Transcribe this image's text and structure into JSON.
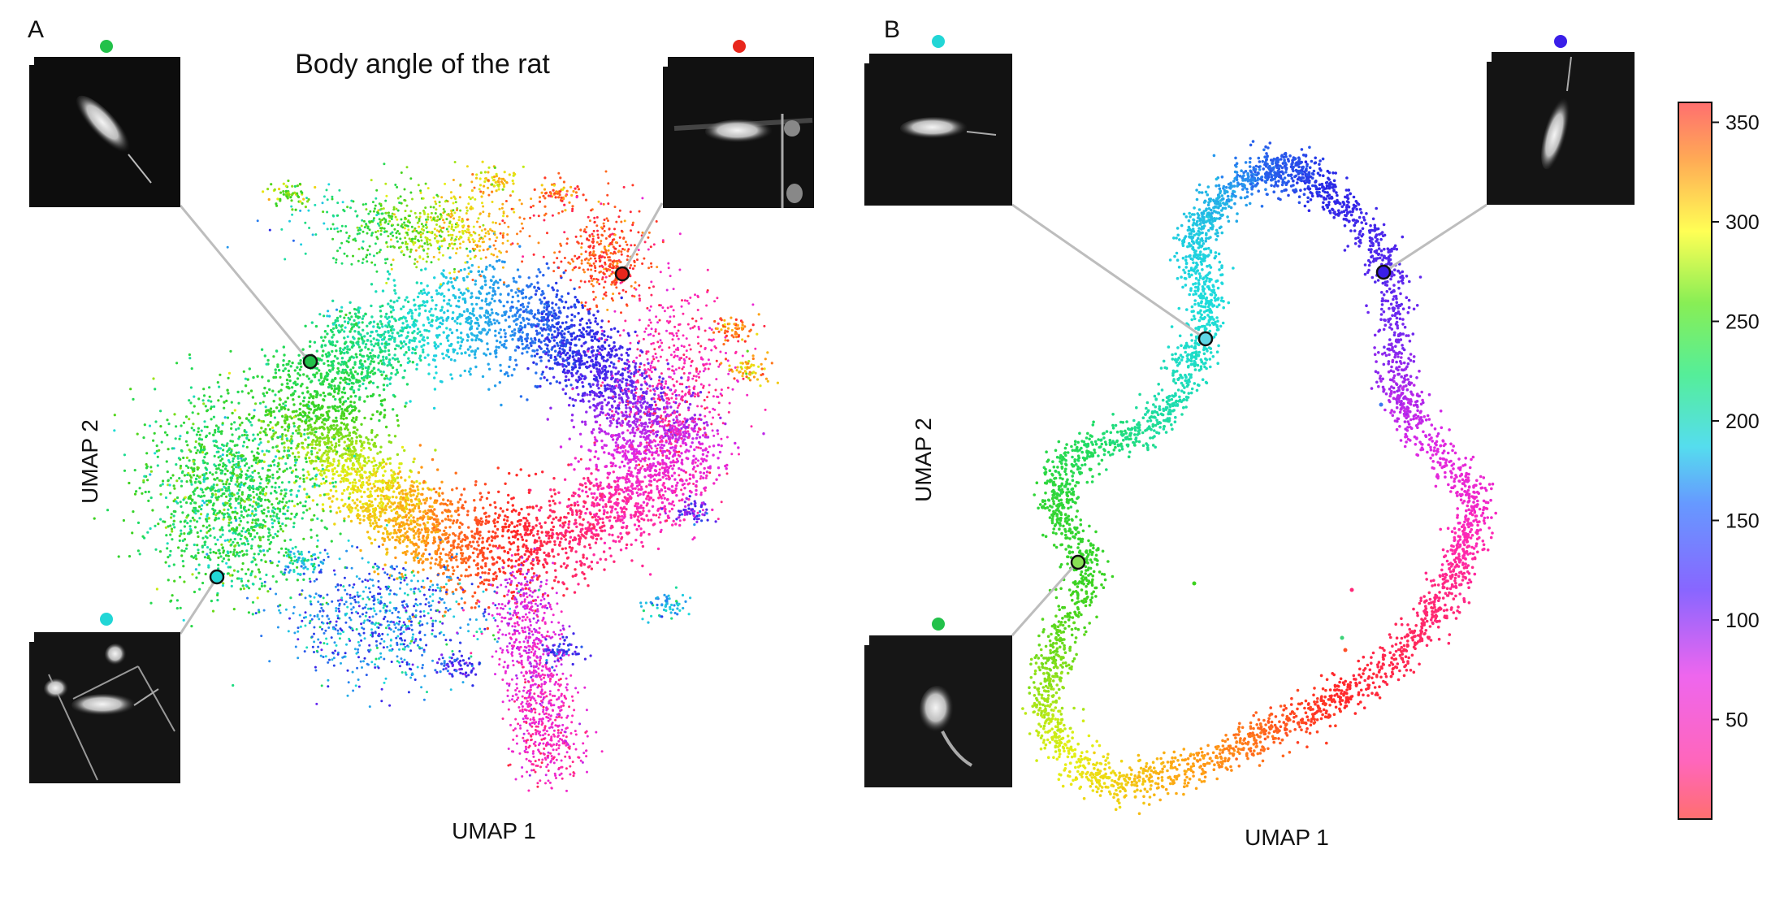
{
  "chart_data": [
    {
      "panel": "A",
      "type": "scatter",
      "title": "Body angle of the rat",
      "xlabel": "UMAP 1",
      "ylabel": "UMAP 2",
      "color_variable": "body angle (degrees)",
      "grid": false,
      "structure": "fragmented cloud with central hole; angle varies around the hole plus many small detached clusters",
      "highlighted_points": [
        {
          "dot_color": "#22c14a",
          "angle": 240
        },
        {
          "dot_color": "#e8261c",
          "angle": 10
        },
        {
          "dot_color": "#22d6d6",
          "angle": 180
        }
      ]
    },
    {
      "panel": "B",
      "type": "scatter",
      "title": "",
      "xlabel": "UMAP 1",
      "ylabel": "UMAP 2",
      "color_variable": "body angle (degrees)",
      "grid": false,
      "structure": "single closed ring, angle increases smoothly around the loop",
      "highlighted_points": [
        {
          "dot_color": "#22d6d6",
          "angle": 185
        },
        {
          "dot_color": "#3a1ee8",
          "angle": 110
        },
        {
          "dot_color": "#22c14a",
          "angle": 240
        }
      ]
    }
  ],
  "colorbar": {
    "colormap": "hsv-like (red-magenta-blue-cyan-green-yellow-red)",
    "range": [
      0,
      360
    ],
    "ticks": [
      "350",
      "300",
      "250",
      "200",
      "150",
      "100",
      "50"
    ]
  }
}
